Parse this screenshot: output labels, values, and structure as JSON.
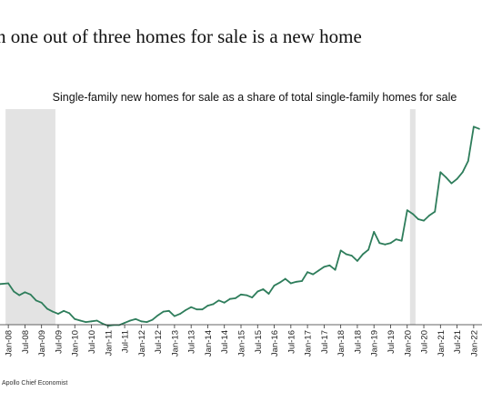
{
  "headline": "h one out of three homes for sale is a new home",
  "footer": {
    "source": "Apollo Chief Economist"
  },
  "chart_data": {
    "type": "line",
    "title": "Single-family new homes for sale as a share of total single-family homes for sale",
    "xlabel": "",
    "ylabel": "",
    "grid": false,
    "legend": "none",
    "line_color": "#2e7d5b",
    "shade_color": "#e3e3e3",
    "x_range": [
      "2007-10",
      "2022-04"
    ],
    "shaded_periods": [
      {
        "start": "2007-12",
        "end": "2009-06"
      },
      {
        "start": "2020-02",
        "end": "2020-04"
      }
    ],
    "tick_labels": [
      "Jan-08",
      "Jul-08",
      "Jan-09",
      "Jul-09",
      "Jan-10",
      "Jul-10",
      "Jan-11",
      "Jul-11",
      "Jan-12",
      "Jul-12",
      "Jan-13",
      "Jul-13",
      "Jan-14",
      "Jul-14",
      "Jan-15",
      "Jul-15",
      "Jan-16",
      "Jul-16",
      "Jan-17",
      "Jul-17",
      "Jan-18",
      "Jul-18",
      "Jan-19",
      "Jul-19",
      "Jan-20",
      "Jul-20",
      "Jan-21",
      "Jul-21",
      "Jan-22"
    ],
    "series": [
      {
        "x": [
          "2007-10",
          "2008-01",
          "2008-03",
          "2008-05",
          "2008-07",
          "2008-09",
          "2008-11",
          "2009-01",
          "2009-03",
          "2009-05",
          "2009-07",
          "2009-09",
          "2009-11",
          "2010-01",
          "2010-03",
          "2010-05",
          "2010-07",
          "2010-09",
          "2010-11",
          "2011-01",
          "2011-03",
          "2011-05",
          "2011-07",
          "2011-09",
          "2011-11",
          "2012-01",
          "2012-03",
          "2012-05",
          "2012-07",
          "2012-09",
          "2012-11",
          "2013-01",
          "2013-03",
          "2013-05",
          "2013-07",
          "2013-09",
          "2013-11",
          "2014-01",
          "2014-03",
          "2014-05",
          "2014-07",
          "2014-09",
          "2014-11",
          "2015-01",
          "2015-03",
          "2015-05",
          "2015-07",
          "2015-09",
          "2015-11",
          "2016-01",
          "2016-03",
          "2016-05",
          "2016-07",
          "2016-09",
          "2016-11",
          "2017-01",
          "2017-03",
          "2017-05",
          "2017-07",
          "2017-09",
          "2017-11",
          "2018-01",
          "2018-03",
          "2018-05",
          "2018-07",
          "2018-09",
          "2018-11",
          "2019-01",
          "2019-03",
          "2019-05",
          "2019-07",
          "2019-09",
          "2019-11",
          "2020-01",
          "2020-03",
          "2020-05",
          "2020-07",
          "2020-09",
          "2020-11",
          "2021-01",
          "2021-03",
          "2021-05",
          "2021-07",
          "2021-09",
          "2021-11",
          "2022-01",
          "2022-03"
        ],
        "values": [
          15.5,
          15.6,
          14.5,
          14.0,
          14.4,
          14.1,
          13.3,
          13.0,
          12.2,
          11.8,
          11.5,
          11.9,
          11.6,
          10.8,
          10.6,
          10.4,
          10.5,
          10.6,
          10.2,
          9.9,
          10.0,
          10.0,
          10.3,
          10.6,
          10.8,
          10.5,
          10.4,
          10.7,
          11.3,
          11.8,
          11.9,
          11.2,
          11.5,
          12.0,
          12.4,
          12.1,
          12.1,
          12.6,
          12.8,
          13.3,
          13.0,
          13.5,
          13.6,
          14.1,
          14.0,
          13.7,
          14.5,
          14.8,
          14.2,
          15.3,
          15.7,
          16.2,
          15.6,
          15.8,
          15.9,
          17.1,
          16.8,
          17.3,
          17.8,
          18.0,
          17.4,
          20.0,
          19.5,
          19.3,
          18.6,
          19.5,
          20.1,
          22.5,
          21.0,
          20.8,
          21.0,
          21.5,
          21.3,
          25.4,
          24.9,
          24.2,
          24.0,
          24.7,
          25.2,
          30.5,
          29.8,
          29.0,
          29.6,
          30.5,
          32.0,
          36.6,
          36.3
        ]
      }
    ]
  }
}
